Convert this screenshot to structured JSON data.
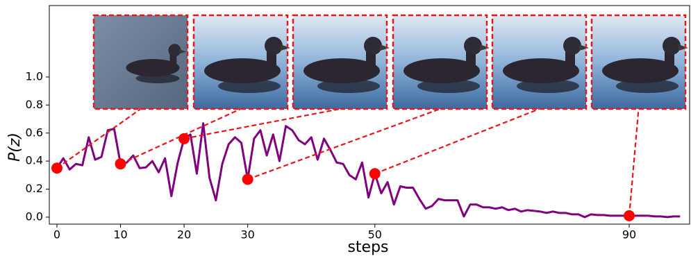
{
  "chart_data": {
    "type": "line",
    "xlabel": "steps",
    "ylabel": "P(z)",
    "xlim": [
      -1.2,
      99.5
    ],
    "ylim": [
      -0.05,
      1.51
    ],
    "xticks": [
      0,
      10,
      20,
      30,
      50,
      90
    ],
    "yticks": [
      {
        "value": 0,
        "label": "0.0"
      },
      0.2,
      0.4,
      0.6,
      0.8,
      {
        "value": 1,
        "label": "1.0"
      }
    ],
    "series": [
      {
        "color": "#800080",
        "x": [
          0,
          1,
          2,
          3,
          4,
          5,
          6,
          7,
          8,
          9,
          10,
          11,
          12,
          13,
          14,
          15,
          16,
          17,
          18,
          19,
          20,
          21,
          22,
          23,
          24,
          25,
          26,
          27,
          28,
          29,
          30,
          31,
          32,
          33,
          34,
          35,
          36,
          37,
          38,
          39,
          40,
          41,
          42,
          43,
          44,
          45,
          46,
          47,
          48,
          49,
          50,
          51,
          52,
          53,
          54,
          55,
          56,
          57,
          58,
          59,
          60,
          61,
          62,
          63,
          64,
          65,
          66,
          67,
          68,
          69,
          70,
          71,
          72,
          73,
          74,
          75,
          76,
          77,
          78,
          79,
          80,
          81,
          82,
          83,
          84,
          85,
          86,
          87,
          88,
          89,
          90,
          91,
          92,
          93,
          94,
          95,
          96,
          97,
          98
        ],
        "values": [
          0.35,
          0.42,
          0.34,
          0.38,
          0.37,
          0.57,
          0.41,
          0.43,
          0.62,
          0.63,
          0.38,
          0.39,
          0.44,
          0.35,
          0.355,
          0.4,
          0.32,
          0.42,
          0.15,
          0.39,
          0.56,
          0.59,
          0.31,
          0.67,
          0.28,
          0.12,
          0.38,
          0.52,
          0.57,
          0.53,
          0.27,
          0.56,
          0.62,
          0.44,
          0.59,
          0.4,
          0.65,
          0.62,
          0.55,
          0.52,
          0.57,
          0.41,
          0.56,
          0.48,
          0.39,
          0.38,
          0.3,
          0.27,
          0.39,
          0.14,
          0.31,
          0.17,
          0.25,
          0.09,
          0.22,
          0.21,
          0.21,
          0.13,
          0.06,
          0.08,
          0.13,
          0.12,
          0.12,
          0.12,
          0.005,
          0.09,
          0.09,
          0.07,
          0.07,
          0.06,
          0.07,
          0.05,
          0.06,
          0.04,
          0.05,
          0.045,
          0.04,
          0.03,
          0.04,
          0.03,
          0.03,
          0.02,
          0.02,
          0.0,
          0.02,
          0.015,
          0.015,
          0.01,
          0.01,
          0.01,
          0.01,
          0.01,
          0.01,
          0.01,
          0.005,
          0.005,
          0.0,
          0.005,
          0.005
        ]
      }
    ],
    "markers": {
      "color": "#ff0000",
      "x": [
        0,
        10,
        20,
        30,
        50,
        90
      ],
      "values": [
        0.35,
        0.38,
        0.56,
        0.27,
        0.31,
        0.01
      ]
    }
  }
}
